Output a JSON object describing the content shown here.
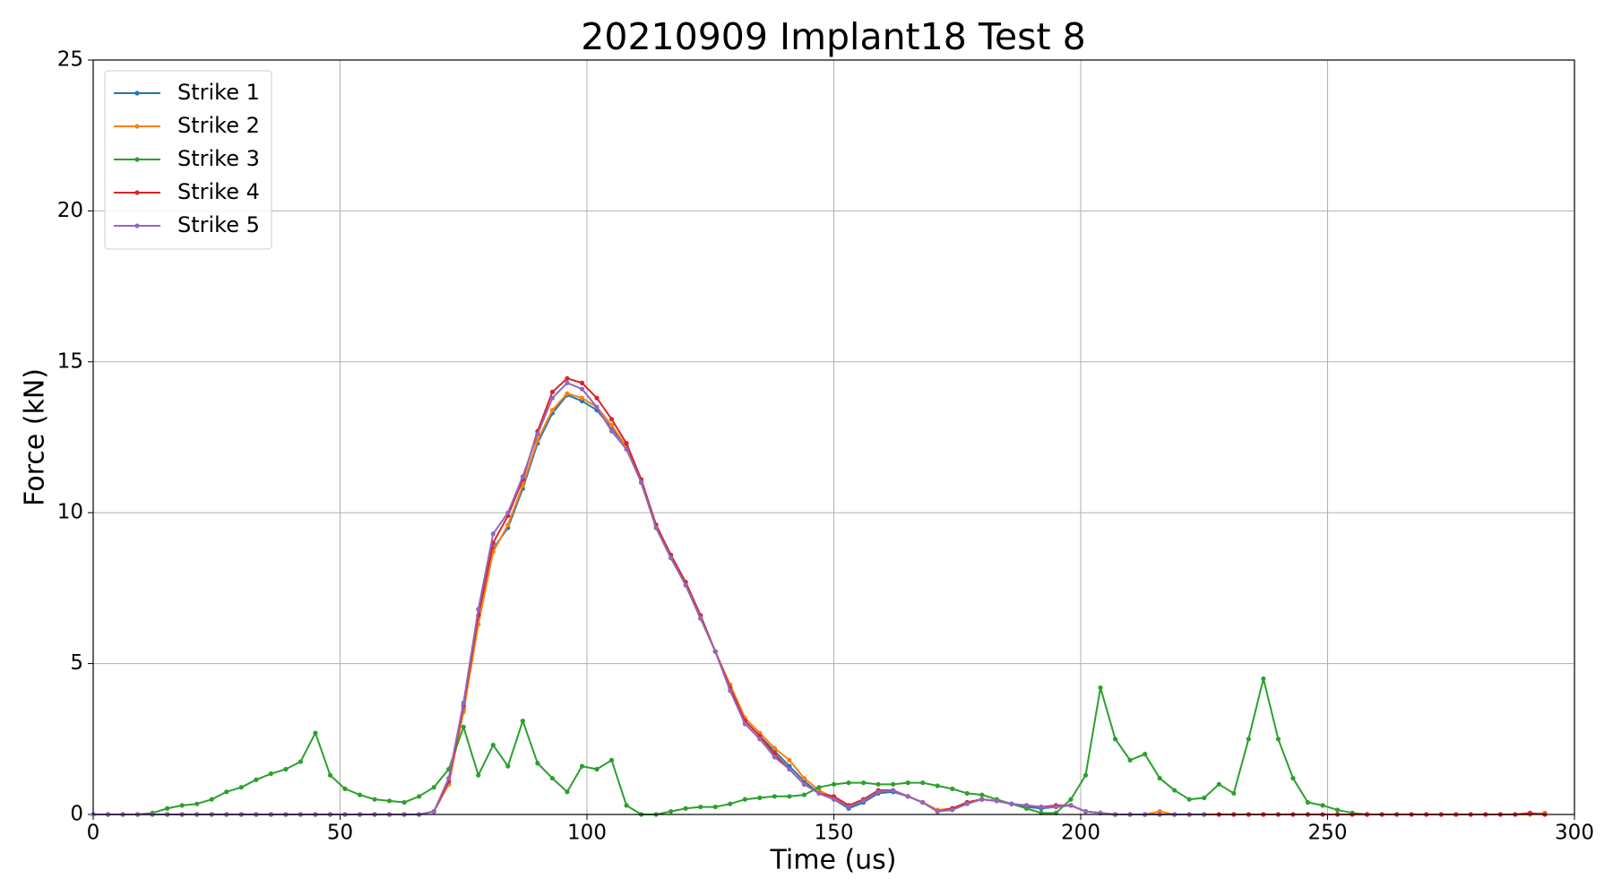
{
  "chart_data": {
    "type": "line",
    "title": "20210909 Implant18 Test 8",
    "x_label": "Time (us)",
    "y_label": "Force (kN)",
    "xlim": [
      0,
      300
    ],
    "ylim": [
      0,
      25
    ],
    "xticks": [
      0,
      50,
      100,
      150,
      200,
      250,
      300
    ],
    "yticks": [
      0,
      5,
      10,
      15,
      20,
      25
    ],
    "grid": true,
    "legend_loc": "upper left",
    "x": [
      0,
      3,
      6,
      9,
      12,
      15,
      18,
      21,
      24,
      27,
      30,
      33,
      36,
      39,
      42,
      45,
      48,
      51,
      54,
      57,
      60,
      63,
      66,
      69,
      72,
      75,
      78,
      81,
      84,
      87,
      90,
      93,
      96,
      99,
      102,
      105,
      108,
      111,
      114,
      117,
      120,
      123,
      126,
      129,
      132,
      135,
      138,
      141,
      144,
      147,
      150,
      153,
      156,
      159,
      162,
      165,
      168,
      171,
      174,
      177,
      180,
      183,
      186,
      189,
      192,
      195,
      198,
      201,
      204,
      207,
      210,
      213,
      216,
      219,
      222,
      225,
      228,
      231,
      234,
      237,
      240,
      243,
      246,
      249,
      252,
      255,
      258,
      261,
      264,
      267,
      270,
      273,
      276,
      279,
      282,
      285,
      288,
      291,
      294,
      297,
      300
    ],
    "series": [
      {
        "name": "Strike 1",
        "color": "#1f77b4",
        "values": [
          0,
          0,
          0,
          0,
          0,
          0,
          0,
          0,
          0,
          0,
          0,
          0,
          0,
          0,
          0,
          0,
          0,
          0,
          0,
          0,
          0,
          0,
          0,
          0.1,
          1.0,
          3.5,
          6.5,
          8.8,
          9.5,
          10.8,
          12.3,
          13.3,
          13.9,
          13.7,
          13.4,
          12.8,
          12.2,
          11.0,
          9.5,
          8.5,
          7.6,
          6.5,
          5.4,
          4.2,
          3.1,
          2.6,
          2.1,
          1.6,
          1.1,
          0.7,
          0.5,
          0.2,
          0.4,
          0.7,
          0.75,
          0.6,
          0.4,
          0.1,
          0.2,
          0.4,
          0.5,
          0.45,
          0.35,
          0.25,
          0.2,
          0.25,
          0.3,
          0.1,
          0.05,
          0,
          0,
          0,
          0,
          0,
          0,
          0,
          null,
          null,
          null,
          null,
          null,
          null,
          null,
          null,
          null,
          null,
          null,
          null,
          null,
          null,
          null,
          null,
          null,
          null,
          null,
          null,
          null,
          null,
          null,
          null,
          null
        ]
      },
      {
        "name": "Strike 2",
        "color": "#ff7f0e",
        "values": [
          0,
          0,
          0,
          0,
          0,
          0,
          0,
          0,
          0,
          0,
          0,
          0,
          0,
          0,
          0,
          0,
          0,
          0,
          0,
          0,
          0,
          0,
          0,
          0.1,
          1.0,
          3.4,
          6.3,
          8.7,
          9.6,
          10.9,
          12.4,
          13.4,
          13.95,
          13.8,
          13.5,
          12.9,
          12.2,
          11.0,
          9.5,
          8.5,
          7.6,
          6.5,
          5.4,
          4.3,
          3.2,
          2.7,
          2.2,
          1.8,
          1.2,
          0.8,
          0.55,
          0.3,
          0.45,
          0.75,
          0.8,
          0.6,
          0.4,
          0.15,
          0.2,
          0.4,
          0.5,
          0.45,
          0.35,
          0.3,
          0.25,
          0.25,
          0.3,
          0.1,
          0.05,
          0,
          0,
          0,
          0.1,
          0,
          0,
          0,
          0,
          0,
          0,
          0,
          0,
          0,
          0,
          0,
          0,
          0,
          0,
          0,
          0,
          0,
          0,
          0,
          0,
          0,
          0,
          0,
          0,
          0,
          0.05,
          null,
          null
        ]
      },
      {
        "name": "Strike 3",
        "color": "#2ca02c",
        "values": [
          0,
          0,
          0,
          0,
          0.05,
          0.2,
          0.3,
          0.35,
          0.5,
          0.75,
          0.9,
          1.15,
          1.35,
          1.5,
          1.75,
          2.7,
          1.3,
          0.85,
          0.65,
          0.5,
          0.45,
          0.4,
          0.6,
          0.9,
          1.5,
          2.9,
          1.3,
          2.3,
          1.6,
          3.1,
          1.7,
          1.2,
          0.75,
          1.6,
          1.5,
          1.8,
          0.3,
          0,
          0,
          0.1,
          0.2,
          0.25,
          0.25,
          0.35,
          0.5,
          0.55,
          0.6,
          0.6,
          0.65,
          0.9,
          1.0,
          1.05,
          1.05,
          1.0,
          1.0,
          1.05,
          1.05,
          0.95,
          0.85,
          0.7,
          0.65,
          0.5,
          0.35,
          0.2,
          0.05,
          0.05,
          0.5,
          1.3,
          4.2,
          2.5,
          1.8,
          2.0,
          1.2,
          0.8,
          0.5,
          0.55,
          1.0,
          0.7,
          2.5,
          4.5,
          2.5,
          1.2,
          0.4,
          0.3,
          0.15,
          0.05,
          0,
          null,
          null,
          null,
          null,
          null,
          null,
          null,
          null,
          null,
          null,
          null,
          null,
          null,
          null
        ]
      },
      {
        "name": "Strike 4",
        "color": "#d62728",
        "values": [
          0,
          0,
          0,
          0,
          0,
          0,
          0,
          0,
          0,
          0,
          0,
          0,
          0,
          0,
          0,
          0,
          0,
          0,
          0,
          0,
          0,
          0,
          0,
          0.1,
          1.1,
          3.6,
          6.6,
          9.0,
          9.9,
          11.1,
          12.7,
          14.0,
          14.45,
          14.3,
          13.8,
          13.1,
          12.3,
          11.1,
          9.6,
          8.6,
          7.7,
          6.6,
          5.4,
          4.2,
          3.1,
          2.6,
          2.0,
          1.5,
          1.0,
          0.7,
          0.6,
          0.3,
          0.5,
          0.8,
          0.8,
          0.6,
          0.4,
          0.1,
          0.2,
          0.4,
          0.5,
          0.45,
          0.35,
          0.3,
          0.25,
          0.3,
          0.3,
          0.1,
          0.05,
          0,
          0,
          0,
          0,
          0,
          0,
          0,
          0,
          0,
          0,
          0,
          0,
          0,
          0,
          0,
          0,
          0,
          0,
          0,
          0,
          0,
          0,
          0,
          0,
          0,
          0,
          0,
          0,
          0.05,
          0,
          null,
          null
        ]
      },
      {
        "name": "Strike 5",
        "color": "#9467bd",
        "values": [
          0,
          0,
          0,
          0,
          0,
          0,
          0,
          0,
          0,
          0,
          0,
          0,
          0,
          0,
          0,
          0,
          0,
          0,
          0,
          0,
          0,
          0,
          0,
          0.1,
          1.2,
          3.7,
          6.8,
          9.3,
          10.0,
          11.2,
          12.6,
          13.8,
          14.3,
          14.1,
          13.5,
          12.7,
          12.1,
          11.0,
          9.5,
          8.5,
          7.6,
          6.5,
          5.4,
          4.1,
          3.0,
          2.5,
          1.9,
          1.5,
          1.0,
          0.7,
          0.5,
          0.25,
          0.45,
          0.75,
          0.8,
          0.6,
          0.4,
          0.1,
          0.15,
          0.35,
          0.5,
          0.45,
          0.35,
          0.3,
          0.25,
          0.25,
          0.3,
          0.1,
          0.05,
          0,
          0,
          0,
          0,
          0,
          0,
          0,
          null,
          null,
          null,
          null,
          null,
          null,
          null,
          null,
          null,
          null,
          null,
          null,
          null,
          null,
          null,
          null,
          null,
          null,
          null,
          null,
          null,
          null,
          null,
          null,
          null
        ]
      }
    ]
  }
}
